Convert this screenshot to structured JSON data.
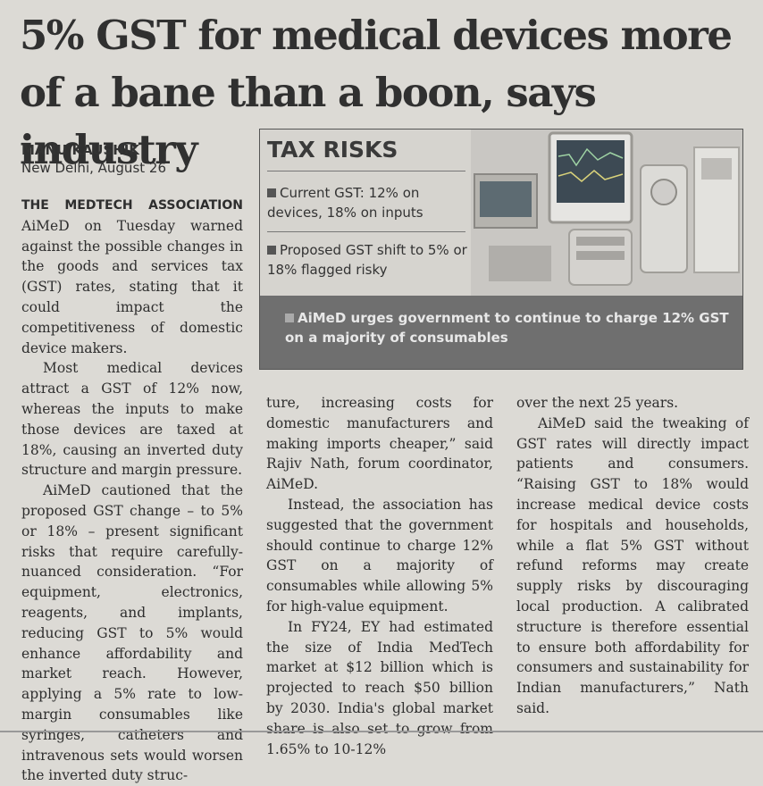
{
  "headline": "5% GST for medical devices more of a bane than a boon, says industry",
  "byline": {
    "author": "MANU KAUSHIK",
    "dateline": "New Delhi, August 26"
  },
  "factbox": {
    "title": "TAX RISKS",
    "items": [
      "Current GST: 12% on devices, 18% on inputs",
      "Proposed GST shift to 5% or 18% flagged risky"
    ],
    "callout": "AiMeD urges government to continue to charge 12% GST on a majority of consumables"
  },
  "body": {
    "col1": {
      "lead_caps": "THE MEDTECH ASSOCIATION",
      "p1": "AiMeD on Tuesday warned against the possible changes in the goods and services tax (GST) rates, stating that it could impact the competitiveness of domestic device makers.",
      "p2": "Most medical devices attract a GST of 12% now, whereas the inputs to make those devices are taxed at 18%, causing an inverted duty structure and margin pressure.",
      "p3": "AiMeD cautioned that the proposed GST change – to 5% or 18% – present significant risks that require carefully-nuanced consideration. “For equipment, electronics, reagents, and implants, reducing GST to 5% would enhance affordability and market reach. However, applying a 5% rate to low-margin consumables like syringes, catheters and intravenous sets would worsen the inverted duty struc-"
    },
    "col2": {
      "p1": "ture, increasing costs for domestic manufacturers and making imports cheaper,” said Rajiv Nath, forum coordinator, AiMeD.",
      "p2": "Instead, the association has suggested that the government should continue to charge 12% GST on a majority of consumables while allowing 5% for high-value equipment.",
      "p3": "In FY24, EY had estimated the size of India MedTech market at $12 billion which is projected to reach $50 billion by 2030. India's global market share is also set to grow from 1.65% to 10-12%"
    },
    "col3": {
      "p1": "over the next 25 years.",
      "p2": "AiMeD said the tweaking of GST rates will directly impact patients and consumers. “Raising GST to 18% would increase medical device costs for hospitals and households, while a flat 5% GST without refund reforms may create supply risks by discouraging local production. A calibrated structure is therefore essential to ensure both affordability for consumers and sustainability for Indian manufacturers,” Nath said."
    }
  }
}
